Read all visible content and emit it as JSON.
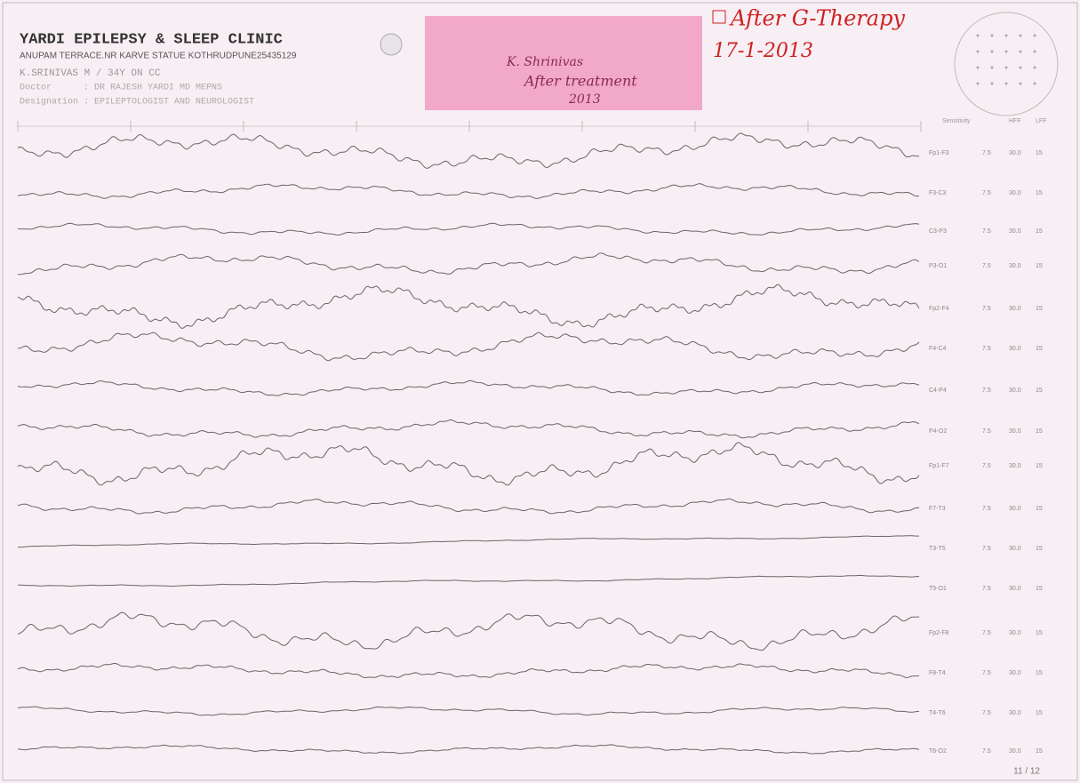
{
  "header": {
    "clinic": "YARDI EPILEPSY & SLEEP CLINIC",
    "address": "ANUPAM TERRACE.NR KARVE STATUE KOTHRUDPUNE25435129",
    "patient": "K.SRINIVAS M / 34Y ON CC",
    "doctor": "Doctor      : DR RAJESH YARDI MD MEPNS",
    "designation": "Designation : EPILEPTOLOGIST AND NEUROLOGIST"
  },
  "sticky_note": {
    "lines": [
      "K. Shrinivas",
      "After treatment",
      "2013"
    ]
  },
  "handwritten": {
    "title": "After G-Therapy",
    "date": "17-1-2013"
  },
  "columns": {
    "sensitivity": "Sensitivity",
    "hff": "HFF",
    "lff": "LFF"
  },
  "channels": [
    {
      "label": "Fp1-F3",
      "sensitivity": "7.5",
      "hff": "30.0",
      "lff": "15"
    },
    {
      "label": "F3-C3",
      "sensitivity": "7.5",
      "hff": "30.0",
      "lff": "15"
    },
    {
      "label": "C3-P3",
      "sensitivity": "7.5",
      "hff": "30.0",
      "lff": "15"
    },
    {
      "label": "P3-O1",
      "sensitivity": "7.5",
      "hff": "30.0",
      "lff": "15"
    },
    {
      "label": "Fp2-F4",
      "sensitivity": "7.5",
      "hff": "30.0",
      "lff": "15"
    },
    {
      "label": "F4-C4",
      "sensitivity": "7.5",
      "hff": "30.0",
      "lff": "15"
    },
    {
      "label": "C4-P4",
      "sensitivity": "7.5",
      "hff": "30.0",
      "lff": "15"
    },
    {
      "label": "P4-O2",
      "sensitivity": "7.5",
      "hff": "30.0",
      "lff": "15"
    },
    {
      "label": "Fp1-F7",
      "sensitivity": "7.5",
      "hff": "30.0",
      "lff": "15"
    },
    {
      "label": "F7-T3",
      "sensitivity": "7.5",
      "hff": "30.0",
      "lff": "15"
    },
    {
      "label": "T3-T5",
      "sensitivity": "7.5",
      "hff": "30.0",
      "lff": "15"
    },
    {
      "label": "T5-O1",
      "sensitivity": "7.5",
      "hff": "30.0",
      "lff": "15"
    },
    {
      "label": "Fp2-F8",
      "sensitivity": "7.5",
      "hff": "30.0",
      "lff": "15"
    },
    {
      "label": "F8-T4",
      "sensitivity": "7.5",
      "hff": "30.0",
      "lff": "15"
    },
    {
      "label": "T4-T6",
      "sensitivity": "7.5",
      "hff": "30.0",
      "lff": "15"
    },
    {
      "label": "T6-O2",
      "sensitivity": "7.5",
      "hff": "30.0",
      "lff": "15"
    }
  ],
  "footer": {
    "page": "11 / 12"
  }
}
